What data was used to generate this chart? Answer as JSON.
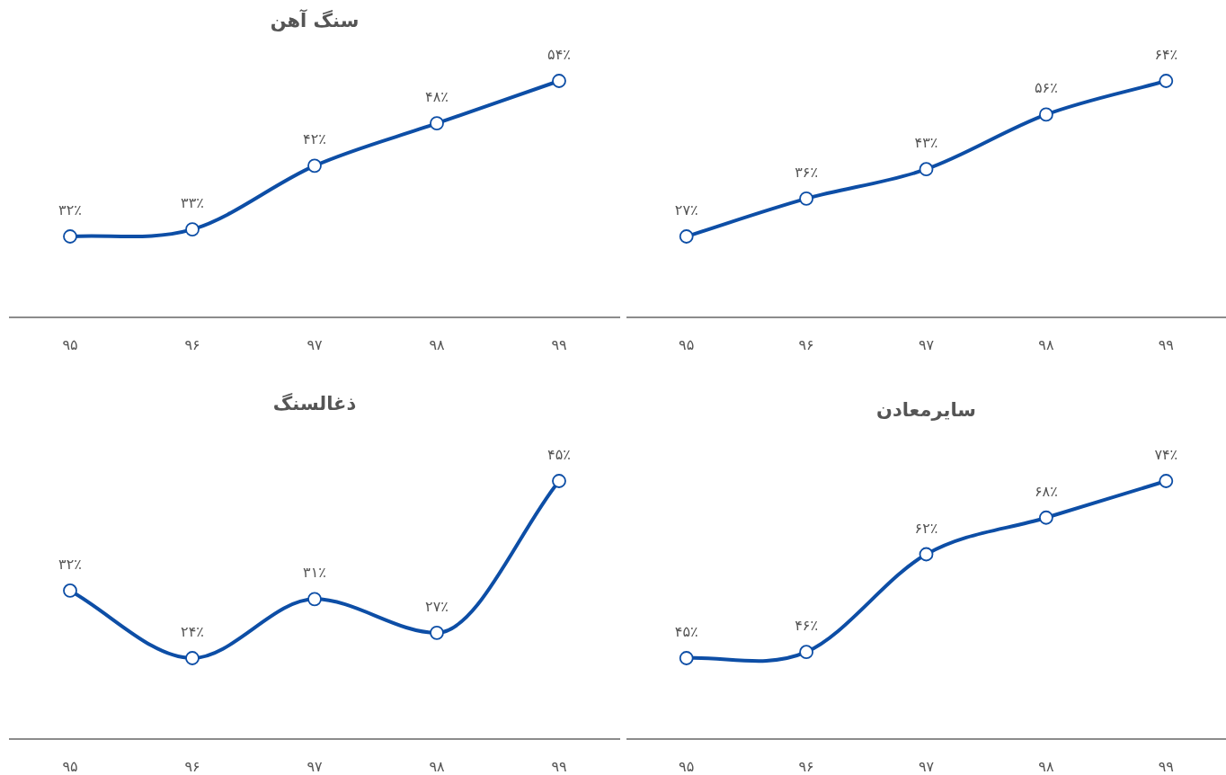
{
  "chart_data": [
    {
      "type": "line",
      "title": "سنگ آهن",
      "categories": [
        "۹۵",
        "۹۶",
        "۹۷",
        "۹۸",
        "۹۹"
      ],
      "marker": "circle",
      "series": [
        {
          "color": "#0d4ea6",
          "values": [
            32,
            33,
            42,
            48,
            54
          ],
          "value_labels": [
            "۳۲٪",
            "۳۳٪",
            "۴۲٪",
            "۴۸٪",
            "۵۴٪"
          ]
        }
      ]
    },
    {
      "type": "line",
      "categories": [
        "۹۵",
        "۹۶",
        "۹۷",
        "۹۸",
        "۹۹"
      ],
      "marker": "circle",
      "series": [
        {
          "color": "#0d4ea6",
          "values": [
            27,
            36,
            43,
            56,
            64
          ],
          "value_labels": [
            "۲۷٪",
            "۳۶٪",
            "۴۳٪",
            "۵۶٪",
            "۶۴٪"
          ]
        }
      ]
    },
    {
      "type": "line",
      "title": "ذغالسنگ",
      "categories": [
        "۹۵",
        "۹۶",
        "۹۷",
        "۹۸",
        "۹۹"
      ],
      "marker": "circle",
      "series": [
        {
          "color": "#0d4ea6",
          "values": [
            32,
            24,
            31,
            27,
            45
          ],
          "value_labels": [
            "۳۲٪",
            "۲۴٪",
            "۳۱٪",
            "۲۷٪",
            "۴۵٪"
          ]
        }
      ]
    },
    {
      "type": "line",
      "title": "سایرمعادن",
      "categories": [
        "۹۵",
        "۹۶",
        "۹۷",
        "۹۸",
        "۹۹"
      ],
      "marker": "circle",
      "series": [
        {
          "color": "#0d4ea6",
          "values": [
            45,
            46,
            62,
            68,
            74
          ],
          "value_labels": [
            "۴۵٪",
            "۴۶٪",
            "۶۲٪",
            "۶۸٪",
            "۷۴٪"
          ]
        }
      ]
    }
  ]
}
